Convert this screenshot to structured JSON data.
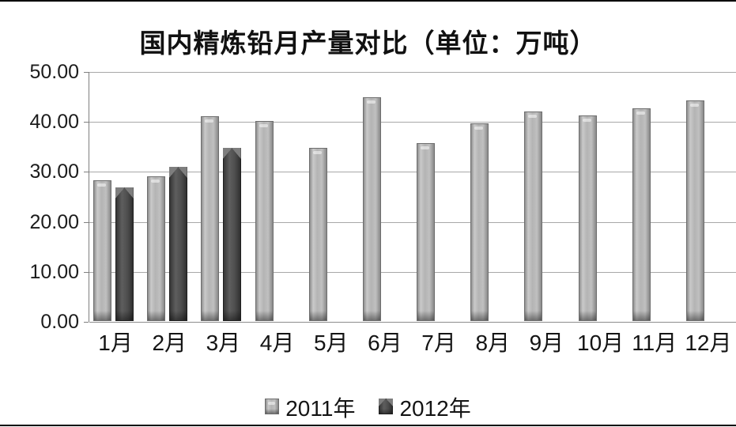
{
  "title": "国内精炼铅月产量对比（单位：万吨）",
  "colors": {
    "series2011_fill": "#b4b4b4",
    "series2011_border": "#6e6e6e",
    "series2012_fill": "#4c4c4c",
    "series2012_border": "#1f1f1f",
    "gridline": "#a8a8a8",
    "axis": "#7f7f7f",
    "frame": "#000000",
    "background": "#ffffff",
    "text": "#141414"
  },
  "chart_data": {
    "type": "bar",
    "title": "国内精炼铅月产量对比（单位：万吨）",
    "unit": "万吨",
    "categories": [
      "1月",
      "2月",
      "3月",
      "4月",
      "5月",
      "6月",
      "7月",
      "8月",
      "9月",
      "10月",
      "11月",
      "12月"
    ],
    "series": [
      {
        "name": "2011年",
        "values": [
          28.1,
          29.0,
          41.0,
          40.0,
          34.6,
          44.8,
          35.6,
          39.6,
          41.9,
          41.2,
          42.5,
          44.1
        ]
      },
      {
        "name": "2012年",
        "values": [
          26.8,
          30.9,
          34.6,
          null,
          null,
          null,
          null,
          null,
          null,
          null,
          null,
          null
        ]
      }
    ],
    "xlabel": "",
    "ylabel": "",
    "ylim": [
      0,
      50
    ],
    "ytick_step": 10,
    "yticks": [
      "50.00",
      "40.00",
      "30.00",
      "20.00",
      "10.00",
      "0.00"
    ],
    "grid": "horizontal",
    "legend_position": "bottom"
  }
}
